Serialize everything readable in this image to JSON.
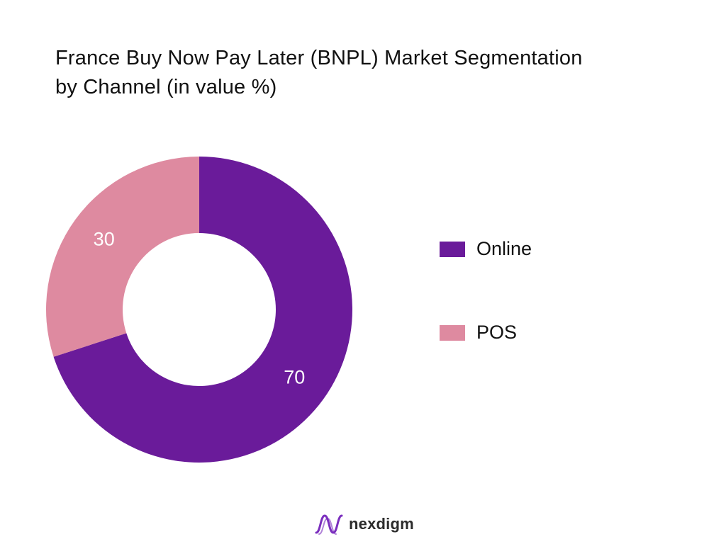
{
  "chart_data": {
    "type": "pie",
    "style": "donut",
    "title": "France Buy Now Pay Later (BNPL) Market Segmentation by Channel (in value %)",
    "title_lines": [
      "France Buy Now Pay Later (BNPL) Market Segmentation",
      "by Channel (in value %)"
    ],
    "categories": [
      "Online",
      "POS"
    ],
    "values": [
      70,
      30
    ],
    "colors": [
      "#6a1b9a",
      "#de8aa0"
    ],
    "label_color": "#ffffff",
    "legend": "right",
    "start_angle": 0,
    "direction": "clockwise"
  },
  "brand": {
    "name": "nexdigm",
    "logo_icon": "nexdigm-wave-logo",
    "logo_color": "#7b2fbe"
  }
}
